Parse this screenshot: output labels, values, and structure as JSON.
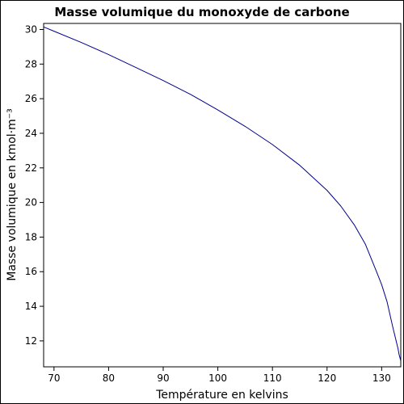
{
  "chart_data": {
    "type": "line",
    "title": "Masse volumique du monoxyde de carbone",
    "xlabel": "Température en kelvins",
    "ylabel": "Masse volumique en kmol·m⁻³",
    "xlim": [
      68.1,
      133.5
    ],
    "ylim": [
      10.5,
      30.35
    ],
    "xticks": [
      70,
      80,
      90,
      100,
      110,
      120,
      130
    ],
    "yticks": [
      12,
      14,
      16,
      18,
      20,
      22,
      24,
      26,
      28,
      30
    ],
    "grid": false,
    "series": [
      {
        "color": "#00008b",
        "x": [
          68.1,
          70,
          75,
          80,
          85,
          90,
          95,
          100,
          105,
          110,
          115,
          120,
          122.5,
          125,
          127,
          129,
          130,
          131,
          132,
          132.5,
          133,
          133.2,
          133.5
        ],
        "y": [
          30.15,
          29.9,
          29.25,
          28.55,
          27.8,
          27.05,
          26.25,
          25.35,
          24.4,
          23.35,
          22.15,
          20.7,
          19.8,
          18.7,
          17.6,
          16.05,
          15.25,
          14.25,
          12.85,
          12.2,
          11.55,
          11.2,
          10.85
        ]
      }
    ]
  }
}
